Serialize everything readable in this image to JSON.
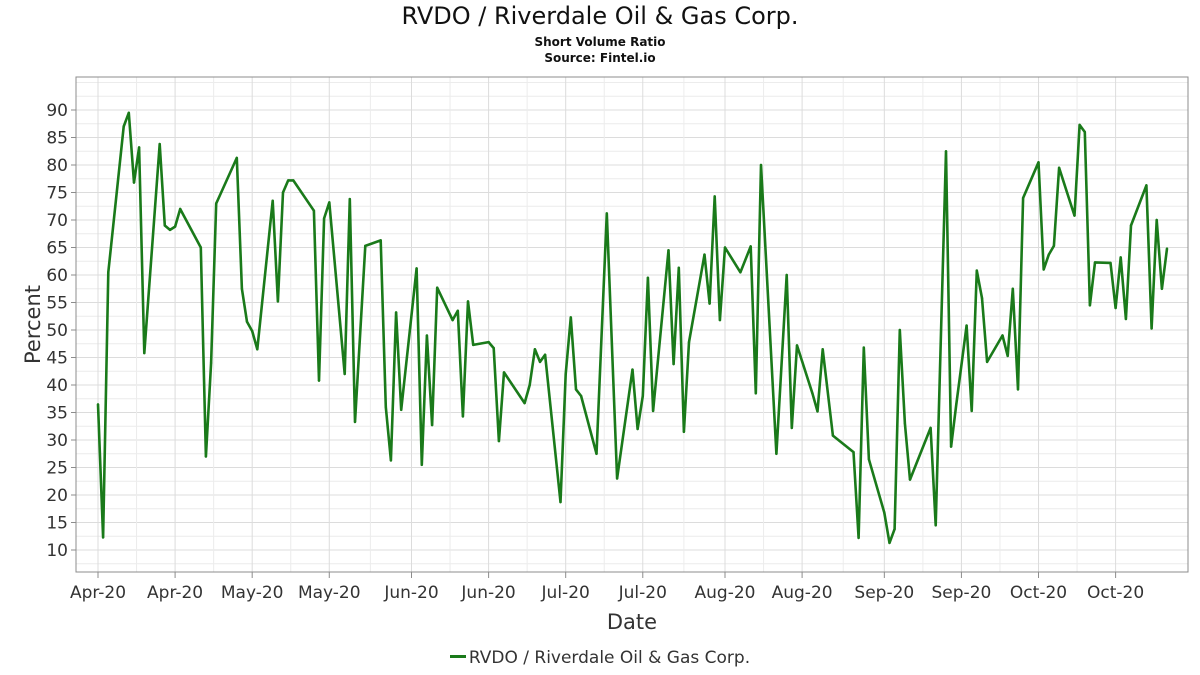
{
  "header": {
    "title": "RVDO / Riverdale Oil & Gas Corp.",
    "subtitle": "Short Volume Ratio",
    "source": "Source: Fintel.io"
  },
  "colors": {
    "series": "#1a7a1a",
    "grid": "#dcdcdc",
    "frame": "#8c8c8c",
    "text": "#333333"
  },
  "chart_data": {
    "type": "line",
    "title": "RVDO / Riverdale Oil & Gas Corp.",
    "subtitle": "Short Volume Ratio",
    "xlabel": "Date",
    "ylabel": "Percent",
    "ylim": [
      6,
      96
    ],
    "yticks": [
      10,
      15,
      20,
      25,
      30,
      35,
      40,
      45,
      50,
      55,
      60,
      65,
      70,
      75,
      80,
      85,
      90
    ],
    "xlim": [
      "2020-04-01",
      "2020-10-26"
    ],
    "xticks": [
      {
        "date": "2020-04-01",
        "label": "Apr-20"
      },
      {
        "date": "2020-04-16",
        "label": "Apr-20"
      },
      {
        "date": "2020-05-01",
        "label": "May-20"
      },
      {
        "date": "2020-05-16",
        "label": "May-20"
      },
      {
        "date": "2020-06-01",
        "label": "Jun-20"
      },
      {
        "date": "2020-06-16",
        "label": "Jun-20"
      },
      {
        "date": "2020-07-01",
        "label": "Jul-20"
      },
      {
        "date": "2020-07-16",
        "label": "Jul-20"
      },
      {
        "date": "2020-08-01",
        "label": "Aug-20"
      },
      {
        "date": "2020-08-16",
        "label": "Aug-20"
      },
      {
        "date": "2020-09-01",
        "label": "Sep-20"
      },
      {
        "date": "2020-09-16",
        "label": "Sep-20"
      },
      {
        "date": "2020-10-01",
        "label": "Oct-20"
      },
      {
        "date": "2020-10-16",
        "label": "Oct-20"
      }
    ],
    "grid": true,
    "legend_position": "bottom",
    "series": [
      {
        "name": "RVDO / Riverdale Oil & Gas Corp.",
        "points": [
          [
            "2020-04-01",
            36.5
          ],
          [
            "2020-04-02",
            12.3
          ],
          [
            "2020-04-03",
            60.5
          ],
          [
            "2020-04-06",
            87.0
          ],
          [
            "2020-04-07",
            89.5
          ],
          [
            "2020-04-08",
            76.8
          ],
          [
            "2020-04-09",
            83.2
          ],
          [
            "2020-04-10",
            45.8
          ],
          [
            "2020-04-13",
            83.8
          ],
          [
            "2020-04-14",
            69.0
          ],
          [
            "2020-04-15",
            68.2
          ],
          [
            "2020-04-16",
            68.8
          ],
          [
            "2020-04-17",
            72.0
          ],
          [
            "2020-04-21",
            65.0
          ],
          [
            "2020-04-22",
            27.0
          ],
          [
            "2020-04-23",
            44.0
          ],
          [
            "2020-04-24",
            73.0
          ],
          [
            "2020-04-28",
            81.3
          ],
          [
            "2020-04-29",
            57.5
          ],
          [
            "2020-04-30",
            51.5
          ],
          [
            "2020-05-01",
            49.8
          ],
          [
            "2020-05-02",
            46.5
          ],
          [
            "2020-05-05",
            73.5
          ],
          [
            "2020-05-06",
            55.2
          ],
          [
            "2020-05-07",
            75.0
          ],
          [
            "2020-05-08",
            77.2
          ],
          [
            "2020-05-09",
            77.2
          ],
          [
            "2020-05-13",
            71.7
          ],
          [
            "2020-05-14",
            40.8
          ],
          [
            "2020-05-15",
            70.3
          ],
          [
            "2020-05-16",
            73.2
          ],
          [
            "2020-05-19",
            42.0
          ],
          [
            "2020-05-20",
            73.8
          ],
          [
            "2020-05-21",
            33.3
          ],
          [
            "2020-05-23",
            65.3
          ],
          [
            "2020-05-26",
            66.3
          ],
          [
            "2020-05-27",
            36.0
          ],
          [
            "2020-05-28",
            26.3
          ],
          [
            "2020-05-29",
            53.2
          ],
          [
            "2020-05-30",
            35.5
          ],
          [
            "2020-06-02",
            61.2
          ],
          [
            "2020-06-03",
            25.5
          ],
          [
            "2020-06-04",
            49.0
          ],
          [
            "2020-06-05",
            32.7
          ],
          [
            "2020-06-06",
            57.7
          ],
          [
            "2020-06-09",
            51.8
          ],
          [
            "2020-06-10",
            53.5
          ],
          [
            "2020-06-11",
            34.3
          ],
          [
            "2020-06-12",
            55.2
          ],
          [
            "2020-06-13",
            47.3
          ],
          [
            "2020-06-16",
            47.8
          ],
          [
            "2020-06-17",
            46.7
          ],
          [
            "2020-06-18",
            29.8
          ],
          [
            "2020-06-19",
            42.3
          ],
          [
            "2020-06-23",
            36.7
          ],
          [
            "2020-06-24",
            40.0
          ],
          [
            "2020-06-25",
            46.5
          ],
          [
            "2020-06-26",
            44.2
          ],
          [
            "2020-06-27",
            45.5
          ],
          [
            "2020-06-30",
            18.7
          ],
          [
            "2020-07-01",
            42.0
          ],
          [
            "2020-07-02",
            52.3
          ],
          [
            "2020-07-03",
            39.2
          ],
          [
            "2020-07-04",
            38.0
          ],
          [
            "2020-07-07",
            27.5
          ],
          [
            "2020-07-09",
            71.2
          ],
          [
            "2020-07-11",
            23.0
          ],
          [
            "2020-07-14",
            42.8
          ],
          [
            "2020-07-15",
            32.0
          ],
          [
            "2020-07-16",
            38.0
          ],
          [
            "2020-07-17",
            59.5
          ],
          [
            "2020-07-18",
            35.3
          ],
          [
            "2020-07-21",
            64.5
          ],
          [
            "2020-07-22",
            43.8
          ],
          [
            "2020-07-23",
            61.3
          ],
          [
            "2020-07-24",
            31.5
          ],
          [
            "2020-07-25",
            47.8
          ],
          [
            "2020-07-28",
            63.7
          ],
          [
            "2020-07-29",
            54.8
          ],
          [
            "2020-07-30",
            74.3
          ],
          [
            "2020-07-31",
            51.8
          ],
          [
            "2020-08-01",
            65.0
          ],
          [
            "2020-08-04",
            60.5
          ],
          [
            "2020-08-06",
            65.2
          ],
          [
            "2020-08-07",
            38.5
          ],
          [
            "2020-08-08",
            80.0
          ],
          [
            "2020-08-11",
            27.5
          ],
          [
            "2020-08-13",
            60.0
          ],
          [
            "2020-08-14",
            32.2
          ],
          [
            "2020-08-15",
            47.2
          ],
          [
            "2020-08-18",
            38.5
          ],
          [
            "2020-08-19",
            35.2
          ],
          [
            "2020-08-20",
            46.5
          ],
          [
            "2020-08-22",
            30.8
          ],
          [
            "2020-08-26",
            27.8
          ],
          [
            "2020-08-27",
            12.2
          ],
          [
            "2020-08-28",
            46.8
          ],
          [
            "2020-08-29",
            26.5
          ],
          [
            "2020-09-01",
            16.8
          ],
          [
            "2020-09-02",
            11.3
          ],
          [
            "2020-09-03",
            13.8
          ],
          [
            "2020-09-04",
            50.0
          ],
          [
            "2020-09-05",
            33.0
          ],
          [
            "2020-09-06",
            22.8
          ],
          [
            "2020-09-10",
            32.2
          ],
          [
            "2020-09-11",
            14.5
          ],
          [
            "2020-09-13",
            82.5
          ],
          [
            "2020-09-14",
            28.8
          ],
          [
            "2020-09-15",
            36.5
          ],
          [
            "2020-09-17",
            50.8
          ],
          [
            "2020-09-18",
            35.3
          ],
          [
            "2020-09-19",
            60.8
          ],
          [
            "2020-09-20",
            55.8
          ],
          [
            "2020-09-21",
            44.2
          ],
          [
            "2020-09-24",
            49.0
          ],
          [
            "2020-09-25",
            45.3
          ],
          [
            "2020-09-26",
            57.5
          ],
          [
            "2020-09-27",
            39.2
          ],
          [
            "2020-09-28",
            74.0
          ],
          [
            "2020-10-01",
            80.5
          ],
          [
            "2020-10-02",
            61.0
          ],
          [
            "2020-10-03",
            63.7
          ],
          [
            "2020-10-04",
            65.3
          ],
          [
            "2020-10-05",
            79.5
          ],
          [
            "2020-10-08",
            70.8
          ],
          [
            "2020-10-09",
            87.3
          ],
          [
            "2020-10-10",
            86.0
          ],
          [
            "2020-10-11",
            54.5
          ],
          [
            "2020-10-12",
            62.3
          ],
          [
            "2020-10-15",
            62.2
          ],
          [
            "2020-10-16",
            54.0
          ],
          [
            "2020-10-17",
            63.2
          ],
          [
            "2020-10-18",
            52.0
          ],
          [
            "2020-10-19",
            69.0
          ],
          [
            "2020-10-22",
            76.3
          ],
          [
            "2020-10-23",
            50.3
          ],
          [
            "2020-10-24",
            70.0
          ],
          [
            "2020-10-25",
            57.5
          ],
          [
            "2020-10-26",
            64.8
          ]
        ]
      }
    ]
  },
  "legend": {
    "label": "RVDO / Riverdale Oil & Gas Corp."
  }
}
